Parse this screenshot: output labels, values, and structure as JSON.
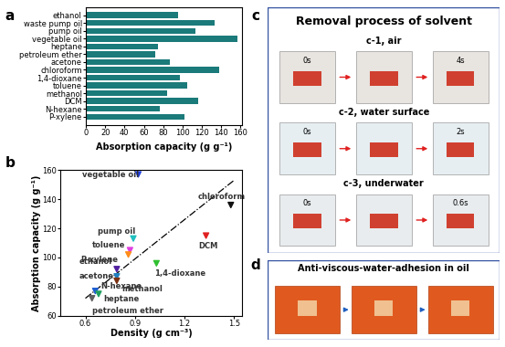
{
  "chart_data": [
    {
      "type": "bar",
      "orientation": "horizontal",
      "annotations": [
        "a"
      ],
      "x_label": "Absorption capacity (g g⁻¹)",
      "categories": [
        "ethanol",
        "waste pump oil",
        "pump oil",
        "vegetable oil",
        "heptane",
        "petroleum ether",
        "acetone",
        "chloroform",
        "1,4-dioxane",
        "toluene",
        "methanol",
        "DCM",
        "N-hexane",
        "P-xylene"
      ],
      "values": [
        95,
        133,
        113,
        157,
        75,
        72,
        87,
        138,
        97,
        105,
        84,
        116,
        77,
        102
      ],
      "color": "#1b7a7a",
      "xlim": [
        0,
        162
      ],
      "xticks": [
        0,
        20,
        40,
        60,
        80,
        100,
        120,
        140,
        160
      ]
    },
    {
      "type": "scatter",
      "annotations": [
        "b"
      ],
      "x_label": "Density (g cm⁻³)",
      "y_label": "Absorption capacity (g g⁻¹)",
      "categories": [
        "vegetable oil",
        "chloroform",
        "DCM",
        "pump oil",
        "toluene",
        "P-xylene",
        "1,4-dioxane",
        "ethanol",
        "acetone",
        "methanol",
        "N-hexane",
        "heptane",
        "petroleum ether"
      ],
      "x": [
        0.92,
        1.48,
        1.33,
        0.89,
        0.87,
        0.86,
        1.03,
        0.79,
        0.79,
        0.79,
        0.66,
        0.68,
        0.64
      ],
      "values": [
        157,
        136,
        115,
        113,
        105,
        102,
        96,
        92,
        87,
        84,
        77,
        75,
        72
      ],
      "colors": [
        "#1f3fe0",
        "#111111",
        "#e02020",
        "#20c0c0",
        "#e040e0",
        "#ff8c1a",
        "#30c030",
        "#5020a0",
        "#2080c0",
        "#7a3010",
        "#1f5fd0",
        "#20a060",
        "#606060"
      ],
      "marker": "triangle_down",
      "fit": {
        "x": [
          0.6,
          1.5
        ],
        "values": [
          72,
          153
        ],
        "line_style": "dashdot",
        "color": "#000000"
      },
      "xlim": [
        0.45,
        1.55
      ],
      "xticks": [
        0.6,
        0.9,
        1.2,
        1.5
      ],
      "ylim": [
        60,
        160
      ],
      "yticks": [
        60,
        80,
        100,
        120,
        140,
        160
      ]
    }
  ],
  "photos": {
    "c": {
      "label": "c",
      "title": "Removal process of solvent",
      "rows": [
        {
          "title": "c-1, air",
          "times": [
            "0s",
            "4s"
          ]
        },
        {
          "title": "c-2, water surface",
          "times": [
            "0s",
            "2s"
          ]
        },
        {
          "title": "c-3, underwater",
          "times": [
            "0s",
            "0.6s"
          ]
        }
      ]
    },
    "d": {
      "label": "d",
      "title": "Anti-viscous-water-adhesion in oil"
    }
  }
}
